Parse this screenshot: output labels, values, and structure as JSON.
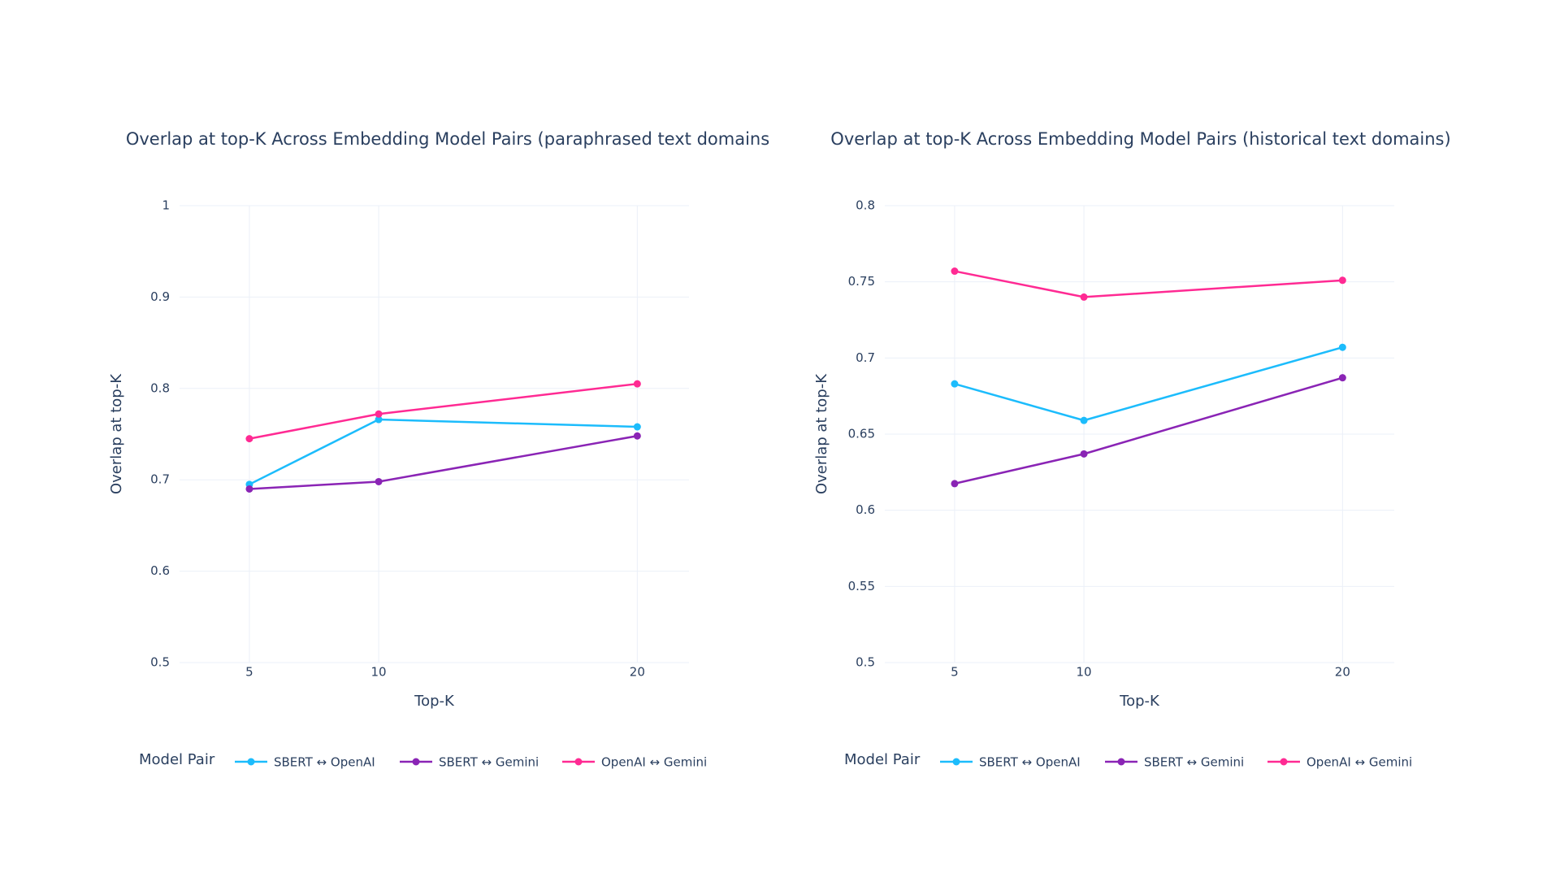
{
  "chart_data": [
    {
      "type": "line",
      "title": "Overlap at top-K Across Embedding Model Pairs (paraphrased text domains",
      "x_label": "Top-K",
      "y_label": "Overlap at top-K",
      "legend_title": "Model Pair",
      "x": [
        5,
        10,
        20
      ],
      "xlim": [
        2.3,
        22
      ],
      "xticks": [
        5,
        10,
        20
      ],
      "ylim": [
        0.5,
        1
      ],
      "yticks": [
        0.5,
        0.6,
        0.7,
        0.8,
        0.9,
        1
      ],
      "grid": true,
      "series": [
        {
          "name": "SBERT ↔ OpenAI",
          "color": "#1cbcfc",
          "values": [
            0.695,
            0.766,
            0.758
          ]
        },
        {
          "name": "SBERT ↔ Gemini",
          "color": "#8a24b5",
          "values": [
            0.69,
            0.698,
            0.748
          ]
        },
        {
          "name": "OpenAI ↔ Gemini",
          "color": "#ff2a93",
          "values": [
            0.745,
            0.772,
            0.805
          ]
        }
      ]
    },
    {
      "type": "line",
      "title": "Overlap at top-K Across Embedding Model Pairs (historical text domains)",
      "x_label": "Top-K",
      "y_label": "Overlap at top-K",
      "legend_title": "Model Pair",
      "x": [
        5,
        10,
        20
      ],
      "xlim": [
        2.3,
        22
      ],
      "xticks": [
        5,
        10,
        20
      ],
      "ylim": [
        0.5,
        0.8
      ],
      "yticks": [
        0.5,
        0.55,
        0.6,
        0.65,
        0.7,
        0.75,
        0.8
      ],
      "grid": true,
      "series": [
        {
          "name": "SBERT ↔ OpenAI",
          "color": "#1cbcfc",
          "values": [
            0.683,
            0.659,
            0.707
          ]
        },
        {
          "name": "SBERT ↔ Gemini",
          "color": "#8a24b5",
          "values": [
            0.6175,
            0.637,
            0.687
          ]
        },
        {
          "name": "OpenAI ↔ Gemini",
          "color": "#ff2a93",
          "values": [
            0.757,
            0.74,
            0.751
          ]
        }
      ]
    }
  ]
}
